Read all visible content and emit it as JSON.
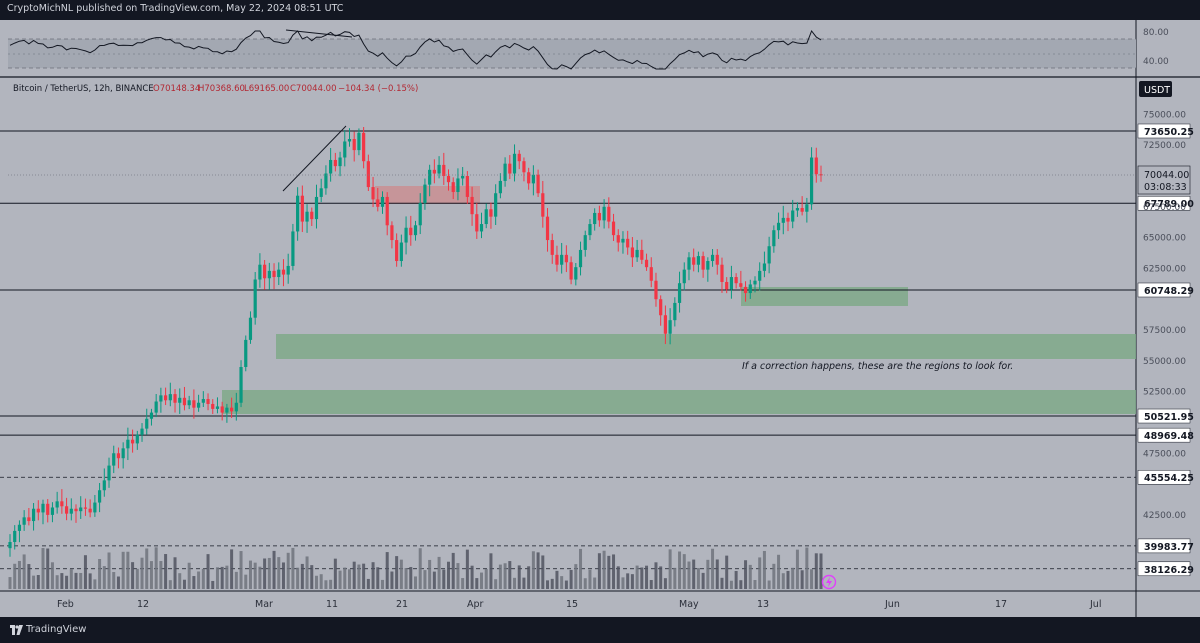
{
  "header": {
    "text": "CryptoMichNL published on TradingView.com, May 22, 2024 08:51 UTC"
  },
  "footer": {
    "brand": "TradingView"
  },
  "colors": {
    "bg": "#b2b5be",
    "frame": "#131722",
    "zone_green": "#7fa98a",
    "zone_red": "#c98f93",
    "candle_up": "#089981",
    "candle_down": "#f23645"
  },
  "legend": {
    "symbol": "Bitcoin / TetherUS, 12h, BINANCE",
    "o": "O70148.34",
    "h": "H70368.60",
    "l": "L69165.00",
    "c": "C70044.00",
    "chg": "−104.34 (−0.15%)"
  },
  "annotation": "If a correction happens, these are the regions to look for.",
  "chart_data": {
    "type": "candlestick",
    "currency": "USDT",
    "ylim": [
      36300,
      77000
    ],
    "y_ticks": [
      75000,
      72500,
      67500,
      65000,
      62500,
      57500,
      55000,
      52500,
      47500,
      42500
    ],
    "price_label": {
      "value": "70044.00",
      "countdown": "03:08:33"
    },
    "levels": [
      {
        "label": "73650.25",
        "value": 73650.25,
        "style": "solid"
      },
      {
        "label": "67789.00",
        "value": 67789,
        "style": "solid"
      },
      {
        "label": "60748.29",
        "value": 60748.29,
        "style": "solid"
      },
      {
        "label": "50521.95",
        "value": 50521.95,
        "style": "solid"
      },
      {
        "label": "48969.48",
        "value": 48969.48,
        "style": "solid"
      },
      {
        "label": "45554.25",
        "value": 45554.25,
        "style": "dashed"
      },
      {
        "label": "39983.77",
        "value": 39983.77,
        "style": "dashed"
      },
      {
        "label": "38126.29",
        "value": 38126.29,
        "style": "dashed"
      }
    ],
    "x_ticks": [
      "Feb",
      "12",
      "Mar",
      "11",
      "21",
      "Apr",
      "15",
      "May",
      "13",
      "Jun",
      "17",
      "Jul"
    ],
    "rsi": {
      "levels": [
        "80.00",
        "40.00"
      ]
    },
    "candles": [
      [
        39800,
        40300
      ],
      [
        40300,
        41200
      ],
      [
        41200,
        41700
      ],
      [
        41700,
        42300
      ],
      [
        42300,
        42000
      ],
      [
        42000,
        43000
      ],
      [
        43000,
        42700
      ],
      [
        42700,
        43400
      ],
      [
        43400,
        42500
      ],
      [
        42500,
        43100
      ],
      [
        43100,
        43600
      ],
      [
        43600,
        43200
      ],
      [
        43200,
        42600
      ],
      [
        42600,
        43000
      ],
      [
        43000,
        42800
      ],
      [
        42800,
        43100
      ],
      [
        43100,
        43000
      ],
      [
        43000,
        42700
      ],
      [
        42700,
        43500
      ],
      [
        43500,
        44500
      ],
      [
        44500,
        45300
      ],
      [
        45300,
        46500
      ],
      [
        46500,
        47500
      ],
      [
        47500,
        47100
      ],
      [
        47100,
        47900
      ],
      [
        47900,
        48600
      ],
      [
        48600,
        48300
      ],
      [
        48300,
        49000
      ],
      [
        49000,
        49500
      ],
      [
        49500,
        50300
      ],
      [
        50300,
        50800
      ],
      [
        50800,
        51700
      ],
      [
        51700,
        52200
      ],
      [
        52200,
        51800
      ],
      [
        51800,
        52300
      ],
      [
        52300,
        51600
      ],
      [
        51600,
        52000
      ],
      [
        52000,
        51400
      ],
      [
        51400,
        51800
      ],
      [
        51800,
        51200
      ],
      [
        51200,
        51600
      ],
      [
        51600,
        51900
      ],
      [
        51900,
        51500
      ],
      [
        51500,
        51100
      ],
      [
        51100,
        51300
      ],
      [
        51300,
        50800
      ],
      [
        50800,
        51200
      ],
      [
        51200,
        50900
      ],
      [
        50900,
        51600
      ],
      [
        51600,
        54500
      ],
      [
        54500,
        56700
      ],
      [
        56700,
        58500
      ],
      [
        58500,
        61600
      ],
      [
        61600,
        62800
      ],
      [
        62800,
        61700
      ],
      [
        61700,
        62300
      ],
      [
        62300,
        61800
      ],
      [
        61800,
        62400
      ],
      [
        62400,
        62000
      ],
      [
        62000,
        62700
      ],
      [
        62700,
        65500
      ],
      [
        65500,
        68400
      ],
      [
        68400,
        66300
      ],
      [
        66300,
        67100
      ],
      [
        67100,
        66500
      ],
      [
        66500,
        68300
      ],
      [
        68300,
        69000
      ],
      [
        69000,
        70200
      ],
      [
        70200,
        71300
      ],
      [
        71300,
        70800
      ],
      [
        70800,
        71500
      ],
      [
        71500,
        72800
      ],
      [
        72800,
        73000
      ],
      [
        73000,
        72100
      ],
      [
        72100,
        73500
      ],
      [
        73500,
        71200
      ],
      [
        71200,
        69100
      ],
      [
        69100,
        68100
      ],
      [
        68100,
        67500
      ],
      [
        67500,
        68300
      ],
      [
        68300,
        66000
      ],
      [
        66000,
        64800
      ],
      [
        64800,
        63100
      ],
      [
        63100,
        64600
      ],
      [
        64600,
        65800
      ],
      [
        65800,
        65200
      ],
      [
        65200,
        66000
      ],
      [
        66000,
        67800
      ],
      [
        67800,
        69300
      ],
      [
        69300,
        70500
      ],
      [
        70500,
        70200
      ],
      [
        70200,
        70900
      ],
      [
        70900,
        70000
      ],
      [
        70000,
        69500
      ],
      [
        69500,
        68700
      ],
      [
        68700,
        69800
      ],
      [
        69800,
        70000
      ],
      [
        70000,
        68300
      ],
      [
        68300,
        66900
      ],
      [
        66900,
        65500
      ],
      [
        65500,
        66100
      ],
      [
        66100,
        67300
      ],
      [
        67300,
        66700
      ],
      [
        66700,
        68600
      ],
      [
        68600,
        69600
      ],
      [
        69600,
        71000
      ],
      [
        71000,
        70200
      ],
      [
        70200,
        71800
      ],
      [
        71800,
        71200
      ],
      [
        71200,
        70300
      ],
      [
        70300,
        69400
      ],
      [
        69400,
        70100
      ],
      [
        70100,
        68600
      ],
      [
        68600,
        66700
      ],
      [
        66700,
        64800
      ],
      [
        64800,
        63600
      ],
      [
        63600,
        62800
      ],
      [
        62800,
        63600
      ],
      [
        63600,
        63000
      ],
      [
        63000,
        61600
      ],
      [
        61600,
        62600
      ],
      [
        62600,
        64000
      ],
      [
        64000,
        65200
      ],
      [
        65200,
        66100
      ],
      [
        66100,
        67000
      ],
      [
        67000,
        66400
      ],
      [
        66400,
        67500
      ],
      [
        67500,
        66300
      ],
      [
        66300,
        65200
      ],
      [
        65200,
        64600
      ],
      [
        64600,
        64900
      ],
      [
        64900,
        64200
      ],
      [
        64200,
        63400
      ],
      [
        63400,
        64000
      ],
      [
        64000,
        63200
      ],
      [
        63200,
        62600
      ],
      [
        62600,
        61500
      ],
      [
        61500,
        60000
      ],
      [
        60000,
        58700
      ],
      [
        58700,
        57200
      ],
      [
        57200,
        58300
      ],
      [
        58300,
        59700
      ],
      [
        59700,
        61300
      ],
      [
        61300,
        62400
      ],
      [
        62400,
        63400
      ],
      [
        63400,
        62800
      ],
      [
        62800,
        63500
      ],
      [
        63500,
        62400
      ],
      [
        62400,
        63100
      ],
      [
        63100,
        63600
      ],
      [
        63600,
        62800
      ],
      [
        62800,
        61400
      ],
      [
        61400,
        60800
      ],
      [
        60800,
        61800
      ],
      [
        61800,
        61300
      ],
      [
        61300,
        61000
      ],
      [
        61000,
        60500
      ],
      [
        60500,
        61200
      ],
      [
        61200,
        61500
      ],
      [
        61500,
        62300
      ],
      [
        62300,
        62900
      ],
      [
        62900,
        64300
      ],
      [
        64300,
        65600
      ],
      [
        65600,
        66200
      ],
      [
        66200,
        66600
      ],
      [
        66600,
        66300
      ],
      [
        66300,
        67200
      ],
      [
        67200,
        67400
      ],
      [
        67400,
        67100
      ],
      [
        67100,
        67700
      ],
      [
        67700,
        71500
      ],
      [
        71500,
        70148.34
      ],
      [
        70148.34,
        70044
      ]
    ]
  }
}
